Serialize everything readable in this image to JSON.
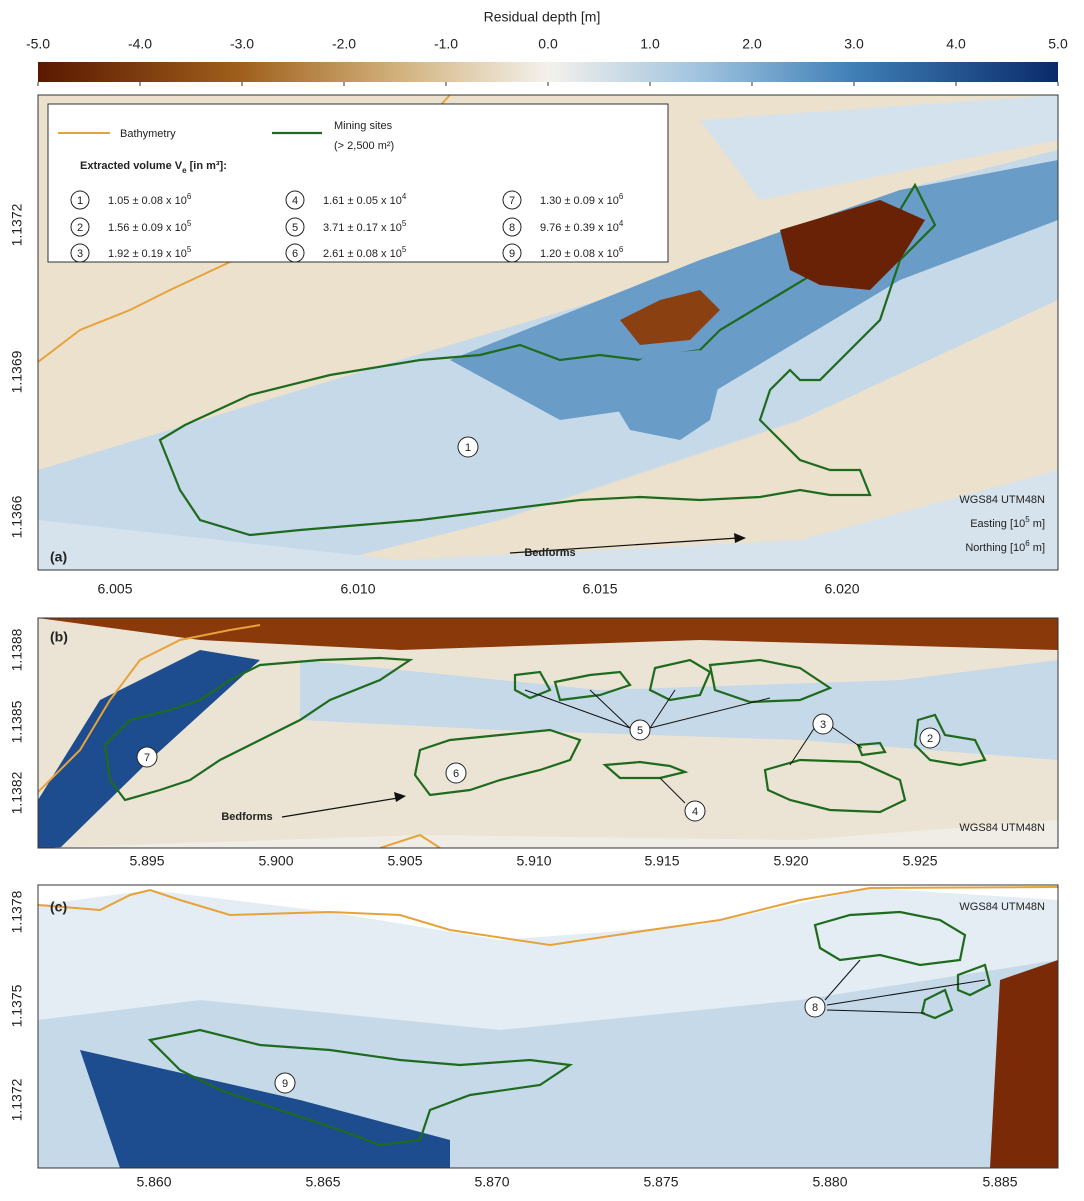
{
  "colorbar": {
    "title": "Residual depth [m]",
    "ticks": [
      "-5.0",
      "-4.0",
      "-3.0",
      "-2.0",
      "-1.0",
      "0.0",
      "1.0",
      "2.0",
      "3.0",
      "4.0",
      "5.0"
    ]
  },
  "legend": {
    "bathymetry": "Bathymetry",
    "mining_sites": "Mining sites",
    "mining_sites_note": "(> 2,500 m²)",
    "volume_title": {
      "text": "Extracted volume V",
      "subscript": "e",
      "suffix": " [in m³]:"
    },
    "items": [
      {
        "id": "1",
        "volume": "1.05 ± 0.08 x 10",
        "exponent": "6"
      },
      {
        "id": "2",
        "volume": "1.56 ± 0.09 x 10",
        "exponent": "5"
      },
      {
        "id": "3",
        "volume": "1.92 ± 0.19 x 10",
        "exponent": "5"
      },
      {
        "id": "4",
        "volume": "1.61 ± 0.05 x 10",
        "exponent": "4"
      },
      {
        "id": "5",
        "volume": "3.71 ± 0.17 x 10",
        "exponent": "5"
      },
      {
        "id": "6",
        "volume": "2.61 ± 0.08 x 10",
        "exponent": "5"
      },
      {
        "id": "7",
        "volume": "1.30 ± 0.09 x 10",
        "exponent": "6"
      },
      {
        "id": "8",
        "volume": "9.76 ± 0.39 x 10",
        "exponent": "4"
      },
      {
        "id": "9",
        "volume": "1.20 ± 0.08 x 10",
        "exponent": "6"
      }
    ]
  },
  "panels": [
    {
      "label": "(a)",
      "xticks": [
        "6.005",
        "6.010",
        "6.015",
        "6.020"
      ],
      "yticks": [
        "1.1372",
        "1.1369",
        "1.1366"
      ],
      "crs": "WGS84 UTM48N",
      "easting": {
        "text": "Easting [10",
        "sup": "5",
        "suffix": " m]"
      },
      "northing": {
        "text": "Northing [10",
        "sup": "6",
        "suffix": " m]"
      },
      "bedforms": "Bedforms",
      "sites": [
        "1"
      ]
    },
    {
      "label": "(b)",
      "xticks": [
        "5.895",
        "5.900",
        "5.905",
        "5.910",
        "5.915",
        "5.920",
        "5.925"
      ],
      "yticks": [
        "1.1388",
        "1.1385",
        "1.1382"
      ],
      "crs": "WGS84 UTM48N",
      "bedforms": "Bedforms",
      "sites": [
        "7",
        "6",
        "5",
        "3",
        "2",
        "4"
      ]
    },
    {
      "label": "(c)",
      "xticks": [
        "5.860",
        "5.865",
        "5.870",
        "5.875",
        "5.880",
        "5.885"
      ],
      "yticks": [
        "1.1378",
        "1.1375",
        "1.1372"
      ],
      "crs": "WGS84 UTM48N",
      "sites": [
        "9",
        "8"
      ]
    }
  ]
}
